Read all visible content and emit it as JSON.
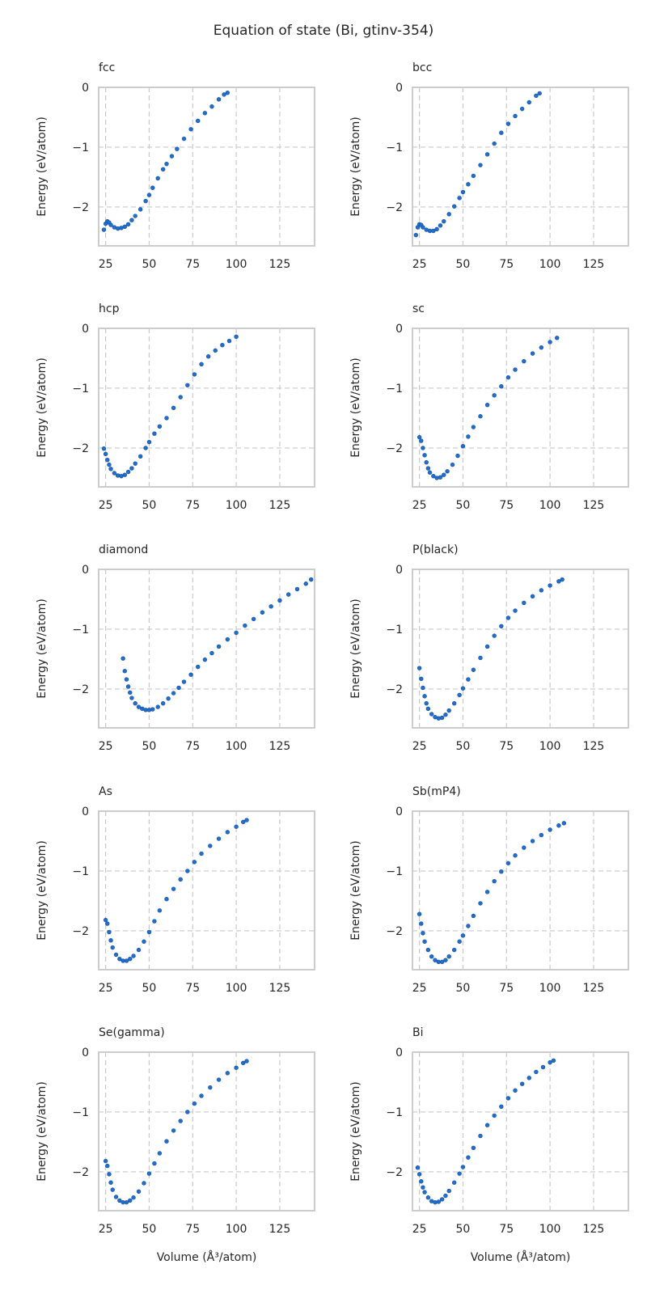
{
  "figure_title": "Equation of state (Bi, gtinv-354)",
  "chart_data": [
    {
      "type": "scatter",
      "title": "fcc",
      "xlabel": "",
      "ylabel": "Energy (eV/atom)",
      "xlim": [
        21,
        145
      ],
      "ylim": [
        -2.65,
        0
      ],
      "xticks": [
        25,
        50,
        75,
        100,
        125
      ],
      "yticks": [
        0,
        -1,
        -2
      ],
      "grid": true,
      "color": "#1f6fd0",
      "points": [
        [
          24,
          -2.38
        ],
        [
          25,
          -2.28
        ],
        [
          26,
          -2.24
        ],
        [
          27,
          -2.26
        ],
        [
          28,
          -2.3
        ],
        [
          30,
          -2.34
        ],
        [
          32,
          -2.36
        ],
        [
          34,
          -2.35
        ],
        [
          36,
          -2.33
        ],
        [
          38,
          -2.29
        ],
        [
          40,
          -2.22
        ],
        [
          42,
          -2.15
        ],
        [
          45,
          -2.04
        ],
        [
          48,
          -1.9
        ],
        [
          50,
          -1.8
        ],
        [
          52,
          -1.68
        ],
        [
          55,
          -1.52
        ],
        [
          58,
          -1.37
        ],
        [
          60,
          -1.28
        ],
        [
          63,
          -1.15
        ],
        [
          66,
          -1.03
        ],
        [
          70,
          -0.86
        ],
        [
          74,
          -0.7
        ],
        [
          78,
          -0.56
        ],
        [
          82,
          -0.43
        ],
        [
          86,
          -0.32
        ],
        [
          90,
          -0.2
        ],
        [
          93,
          -0.12
        ],
        [
          95,
          -0.09
        ]
      ]
    },
    {
      "type": "scatter",
      "title": "bcc",
      "xlabel": "",
      "ylabel": "Energy (eV/atom)",
      "xlim": [
        21,
        145
      ],
      "ylim": [
        -2.65,
        0
      ],
      "xticks": [
        25,
        50,
        75,
        100,
        125
      ],
      "yticks": [
        0,
        -1,
        -2
      ],
      "grid": true,
      "color": "#1f6fd0",
      "points": [
        [
          23,
          -2.47
        ],
        [
          24,
          -2.34
        ],
        [
          25,
          -2.29
        ],
        [
          26,
          -2.3
        ],
        [
          27,
          -2.34
        ],
        [
          29,
          -2.38
        ],
        [
          31,
          -2.4
        ],
        [
          33,
          -2.4
        ],
        [
          35,
          -2.37
        ],
        [
          37,
          -2.31
        ],
        [
          39,
          -2.24
        ],
        [
          42,
          -2.12
        ],
        [
          45,
          -1.99
        ],
        [
          48,
          -1.85
        ],
        [
          50,
          -1.75
        ],
        [
          53,
          -1.62
        ],
        [
          56,
          -1.48
        ],
        [
          60,
          -1.3
        ],
        [
          64,
          -1.12
        ],
        [
          68,
          -0.94
        ],
        [
          72,
          -0.76
        ],
        [
          76,
          -0.61
        ],
        [
          80,
          -0.48
        ],
        [
          84,
          -0.36
        ],
        [
          88,
          -0.25
        ],
        [
          92,
          -0.14
        ],
        [
          94,
          -0.1
        ]
      ]
    },
    {
      "type": "scatter",
      "title": "hcp",
      "xlabel": "",
      "ylabel": "Energy (eV/atom)",
      "xlim": [
        21,
        145
      ],
      "ylim": [
        -2.65,
        0
      ],
      "xticks": [
        25,
        50,
        75,
        100,
        125
      ],
      "yticks": [
        0,
        -1,
        -2
      ],
      "grid": true,
      "color": "#1f6fd0",
      "points": [
        [
          24,
          -2.01
        ],
        [
          25,
          -2.1
        ],
        [
          26,
          -2.2
        ],
        [
          27,
          -2.28
        ],
        [
          28,
          -2.35
        ],
        [
          30,
          -2.42
        ],
        [
          32,
          -2.46
        ],
        [
          34,
          -2.47
        ],
        [
          36,
          -2.45
        ],
        [
          38,
          -2.4
        ],
        [
          40,
          -2.34
        ],
        [
          42,
          -2.26
        ],
        [
          45,
          -2.14
        ],
        [
          48,
          -2.0
        ],
        [
          50,
          -1.9
        ],
        [
          53,
          -1.76
        ],
        [
          56,
          -1.64
        ],
        [
          60,
          -1.5
        ],
        [
          64,
          -1.33
        ],
        [
          68,
          -1.15
        ],
        [
          72,
          -0.95
        ],
        [
          76,
          -0.77
        ],
        [
          80,
          -0.6
        ],
        [
          84,
          -0.47
        ],
        [
          88,
          -0.37
        ],
        [
          92,
          -0.28
        ],
        [
          96,
          -0.21
        ],
        [
          100,
          -0.14
        ]
      ]
    },
    {
      "type": "scatter",
      "title": "sc",
      "xlabel": "",
      "ylabel": "Energy (eV/atom)",
      "xlim": [
        21,
        145
      ],
      "ylim": [
        -2.65,
        0
      ],
      "xticks": [
        25,
        50,
        75,
        100,
        125
      ],
      "yticks": [
        0,
        -1,
        -2
      ],
      "grid": true,
      "color": "#1f6fd0",
      "points": [
        [
          25,
          -1.82
        ],
        [
          26,
          -1.88
        ],
        [
          27,
          -2.0
        ],
        [
          28,
          -2.12
        ],
        [
          29,
          -2.24
        ],
        [
          30,
          -2.34
        ],
        [
          31,
          -2.41
        ],
        [
          33,
          -2.47
        ],
        [
          35,
          -2.5
        ],
        [
          37,
          -2.49
        ],
        [
          39,
          -2.45
        ],
        [
          41,
          -2.39
        ],
        [
          44,
          -2.28
        ],
        [
          47,
          -2.13
        ],
        [
          50,
          -1.97
        ],
        [
          53,
          -1.81
        ],
        [
          56,
          -1.65
        ],
        [
          60,
          -1.47
        ],
        [
          64,
          -1.28
        ],
        [
          68,
          -1.12
        ],
        [
          72,
          -0.97
        ],
        [
          76,
          -0.82
        ],
        [
          80,
          -0.69
        ],
        [
          85,
          -0.55
        ],
        [
          90,
          -0.42
        ],
        [
          95,
          -0.32
        ],
        [
          100,
          -0.23
        ],
        [
          104,
          -0.16
        ]
      ]
    },
    {
      "type": "scatter",
      "title": "diamond",
      "xlabel": "",
      "ylabel": "Energy (eV/atom)",
      "xlim": [
        21,
        145
      ],
      "ylim": [
        -2.65,
        0
      ],
      "xticks": [
        25,
        50,
        75,
        100,
        125
      ],
      "yticks": [
        0,
        -1,
        -2
      ],
      "grid": true,
      "color": "#1f6fd0",
      "points": [
        [
          35,
          -1.49
        ],
        [
          36,
          -1.7
        ],
        [
          37,
          -1.84
        ],
        [
          38,
          -1.96
        ],
        [
          39,
          -2.06
        ],
        [
          40,
          -2.15
        ],
        [
          42,
          -2.24
        ],
        [
          44,
          -2.3
        ],
        [
          46,
          -2.33
        ],
        [
          48,
          -2.35
        ],
        [
          50,
          -2.35
        ],
        [
          52,
          -2.34
        ],
        [
          55,
          -2.3
        ],
        [
          58,
          -2.24
        ],
        [
          61,
          -2.16
        ],
        [
          64,
          -2.07
        ],
        [
          67,
          -1.98
        ],
        [
          70,
          -1.88
        ],
        [
          74,
          -1.76
        ],
        [
          78,
          -1.63
        ],
        [
          82,
          -1.51
        ],
        [
          86,
          -1.4
        ],
        [
          90,
          -1.29
        ],
        [
          95,
          -1.17
        ],
        [
          100,
          -1.06
        ],
        [
          105,
          -0.94
        ],
        [
          110,
          -0.83
        ],
        [
          115,
          -0.72
        ],
        [
          120,
          -0.62
        ],
        [
          125,
          -0.52
        ],
        [
          130,
          -0.42
        ],
        [
          135,
          -0.33
        ],
        [
          140,
          -0.24
        ],
        [
          143,
          -0.17
        ]
      ]
    },
    {
      "type": "scatter",
      "title": "P(black)",
      "xlabel": "",
      "ylabel": "Energy (eV/atom)",
      "xlim": [
        21,
        145
      ],
      "ylim": [
        -2.65,
        0
      ],
      "xticks": [
        25,
        50,
        75,
        100,
        125
      ],
      "yticks": [
        0,
        -1,
        -2
      ],
      "grid": true,
      "color": "#1f6fd0",
      "points": [
        [
          25,
          -1.65
        ],
        [
          26,
          -1.83
        ],
        [
          27,
          -1.98
        ],
        [
          28,
          -2.12
        ],
        [
          29,
          -2.24
        ],
        [
          30,
          -2.33
        ],
        [
          32,
          -2.42
        ],
        [
          34,
          -2.47
        ],
        [
          36,
          -2.49
        ],
        [
          38,
          -2.48
        ],
        [
          40,
          -2.43
        ],
        [
          42,
          -2.36
        ],
        [
          45,
          -2.24
        ],
        [
          48,
          -2.1
        ],
        [
          50,
          -1.99
        ],
        [
          53,
          -1.84
        ],
        [
          56,
          -1.68
        ],
        [
          60,
          -1.48
        ],
        [
          64,
          -1.29
        ],
        [
          68,
          -1.11
        ],
        [
          72,
          -0.95
        ],
        [
          76,
          -0.81
        ],
        [
          80,
          -0.69
        ],
        [
          85,
          -0.56
        ],
        [
          90,
          -0.45
        ],
        [
          95,
          -0.35
        ],
        [
          100,
          -0.27
        ],
        [
          105,
          -0.2
        ],
        [
          107,
          -0.17
        ]
      ]
    },
    {
      "type": "scatter",
      "title": "As",
      "xlabel": "",
      "ylabel": "Energy (eV/atom)",
      "xlim": [
        21,
        145
      ],
      "ylim": [
        -2.65,
        0
      ],
      "xticks": [
        25,
        50,
        75,
        100,
        125
      ],
      "yticks": [
        0,
        -1,
        -2
      ],
      "grid": true,
      "color": "#1f6fd0",
      "points": [
        [
          25,
          -1.82
        ],
        [
          26,
          -1.88
        ],
        [
          27,
          -2.02
        ],
        [
          28,
          -2.16
        ],
        [
          29,
          -2.28
        ],
        [
          31,
          -2.4
        ],
        [
          33,
          -2.47
        ],
        [
          35,
          -2.5
        ],
        [
          37,
          -2.5
        ],
        [
          39,
          -2.47
        ],
        [
          41,
          -2.42
        ],
        [
          44,
          -2.32
        ],
        [
          47,
          -2.18
        ],
        [
          50,
          -2.02
        ],
        [
          53,
          -1.84
        ],
        [
          56,
          -1.66
        ],
        [
          60,
          -1.47
        ],
        [
          64,
          -1.3
        ],
        [
          68,
          -1.14
        ],
        [
          72,
          -1.0
        ],
        [
          76,
          -0.85
        ],
        [
          80,
          -0.71
        ],
        [
          85,
          -0.58
        ],
        [
          90,
          -0.46
        ],
        [
          95,
          -0.35
        ],
        [
          100,
          -0.26
        ],
        [
          104,
          -0.18
        ],
        [
          106,
          -0.15
        ]
      ]
    },
    {
      "type": "scatter",
      "title": "Sb(mP4)",
      "xlabel": "",
      "ylabel": "Energy (eV/atom)",
      "xlim": [
        21,
        145
      ],
      "ylim": [
        -2.65,
        0
      ],
      "xticks": [
        25,
        50,
        75,
        100,
        125
      ],
      "yticks": [
        0,
        -1,
        -2
      ],
      "grid": true,
      "color": "#1f6fd0",
      "points": [
        [
          25,
          -1.72
        ],
        [
          26,
          -1.88
        ],
        [
          27,
          -2.04
        ],
        [
          28,
          -2.18
        ],
        [
          30,
          -2.32
        ],
        [
          32,
          -2.43
        ],
        [
          34,
          -2.49
        ],
        [
          36,
          -2.52
        ],
        [
          38,
          -2.52
        ],
        [
          40,
          -2.49
        ],
        [
          42,
          -2.43
        ],
        [
          45,
          -2.32
        ],
        [
          48,
          -2.18
        ],
        [
          50,
          -2.08
        ],
        [
          53,
          -1.92
        ],
        [
          56,
          -1.75
        ],
        [
          60,
          -1.54
        ],
        [
          64,
          -1.35
        ],
        [
          68,
          -1.17
        ],
        [
          72,
          -1.01
        ],
        [
          76,
          -0.87
        ],
        [
          80,
          -0.74
        ],
        [
          85,
          -0.61
        ],
        [
          90,
          -0.5
        ],
        [
          95,
          -0.4
        ],
        [
          100,
          -0.31
        ],
        [
          105,
          -0.24
        ],
        [
          108,
          -0.2
        ]
      ]
    },
    {
      "type": "scatter",
      "title": "Se(gamma)",
      "xlabel": "Volume (Å³/atom)",
      "ylabel": "Energy (eV/atom)",
      "xlim": [
        21,
        145
      ],
      "ylim": [
        -2.65,
        0
      ],
      "xticks": [
        25,
        50,
        75,
        100,
        125
      ],
      "yticks": [
        0,
        -1,
        -2
      ],
      "grid": true,
      "color": "#1f6fd0",
      "points": [
        [
          25,
          -1.82
        ],
        [
          26,
          -1.9
        ],
        [
          27,
          -2.04
        ],
        [
          28,
          -2.18
        ],
        [
          29,
          -2.3
        ],
        [
          31,
          -2.42
        ],
        [
          33,
          -2.48
        ],
        [
          35,
          -2.51
        ],
        [
          37,
          -2.51
        ],
        [
          39,
          -2.48
        ],
        [
          41,
          -2.43
        ],
        [
          44,
          -2.33
        ],
        [
          47,
          -2.19
        ],
        [
          50,
          -2.03
        ],
        [
          53,
          -1.86
        ],
        [
          56,
          -1.69
        ],
        [
          60,
          -1.49
        ],
        [
          64,
          -1.31
        ],
        [
          68,
          -1.15
        ],
        [
          72,
          -1.0
        ],
        [
          76,
          -0.86
        ],
        [
          80,
          -0.73
        ],
        [
          85,
          -0.59
        ],
        [
          90,
          -0.46
        ],
        [
          95,
          -0.35
        ],
        [
          100,
          -0.26
        ],
        [
          104,
          -0.18
        ],
        [
          106,
          -0.15
        ]
      ]
    },
    {
      "type": "scatter",
      "title": "Bi",
      "xlabel": "Volume (Å³/atom)",
      "ylabel": "Energy (eV/atom)",
      "xlim": [
        21,
        145
      ],
      "ylim": [
        -2.65,
        0
      ],
      "xticks": [
        25,
        50,
        75,
        100,
        125
      ],
      "yticks": [
        0,
        -1,
        -2
      ],
      "grid": true,
      "color": "#1f6fd0",
      "points": [
        [
          24,
          -1.93
        ],
        [
          25,
          -2.04
        ],
        [
          26,
          -2.16
        ],
        [
          27,
          -2.26
        ],
        [
          28,
          -2.34
        ],
        [
          30,
          -2.43
        ],
        [
          32,
          -2.49
        ],
        [
          34,
          -2.51
        ],
        [
          36,
          -2.5
        ],
        [
          38,
          -2.46
        ],
        [
          40,
          -2.4
        ],
        [
          42,
          -2.32
        ],
        [
          45,
          -2.18
        ],
        [
          48,
          -2.03
        ],
        [
          50,
          -1.92
        ],
        [
          53,
          -1.76
        ],
        [
          56,
          -1.6
        ],
        [
          60,
          -1.4
        ],
        [
          64,
          -1.22
        ],
        [
          68,
          -1.06
        ],
        [
          72,
          -0.91
        ],
        [
          76,
          -0.77
        ],
        [
          80,
          -0.64
        ],
        [
          84,
          -0.53
        ],
        [
          88,
          -0.43
        ],
        [
          92,
          -0.33
        ],
        [
          96,
          -0.25
        ],
        [
          100,
          -0.17
        ],
        [
          102,
          -0.14
        ]
      ]
    }
  ]
}
